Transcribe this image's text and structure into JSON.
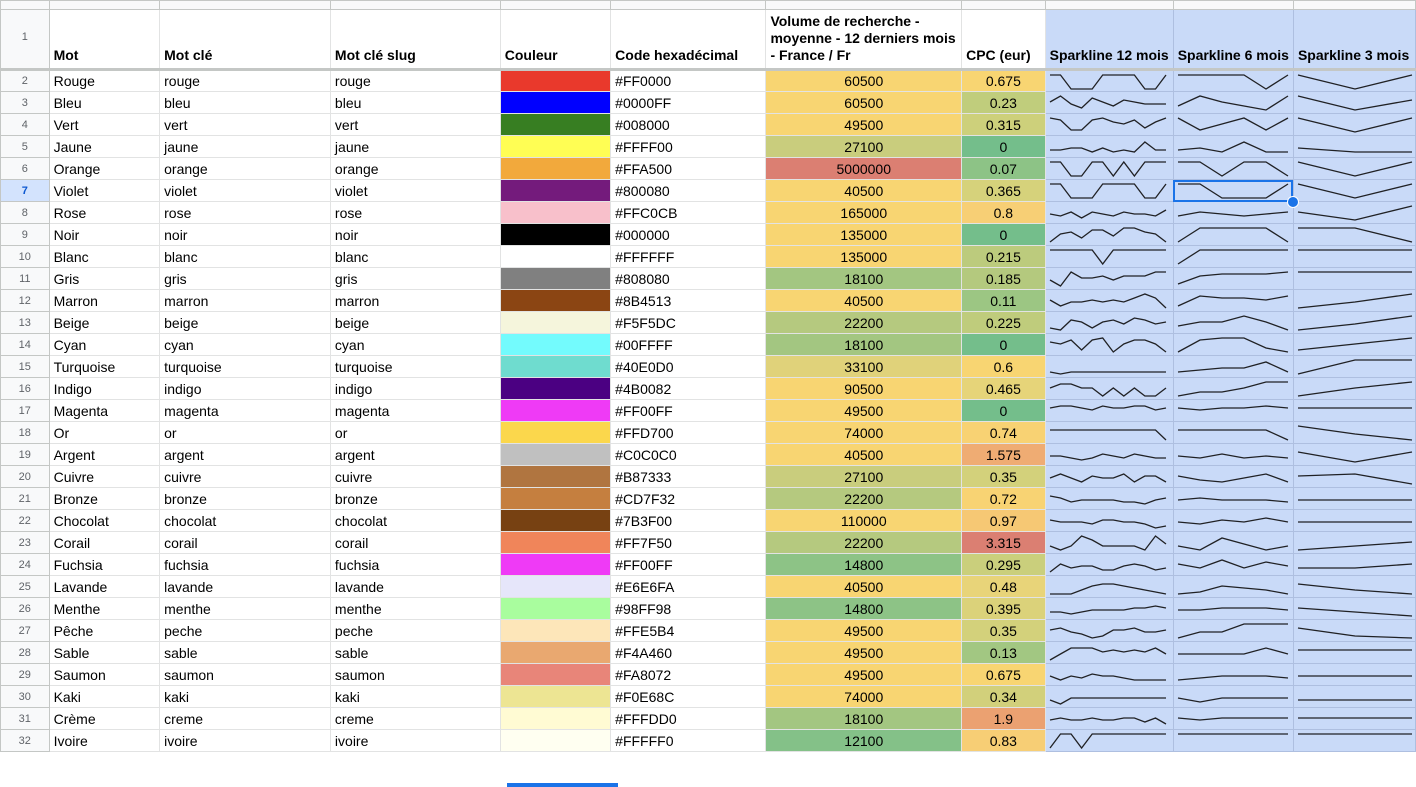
{
  "columns": {
    "mot": "Mot",
    "mot_cle": "Mot clé",
    "slug": "Mot clé slug",
    "couleur": "Couleur",
    "hex": "Code hexadécimal",
    "volume": "Volume de recherche - moyenne - 12 derniers mois - France / Fr",
    "cpc": "CPC (eur)",
    "spark12": "Sparkline 12 mois",
    "spark6": "Sparkline 6 mois",
    "spark3": "Sparkline 3 mois"
  },
  "header_row_number": "1",
  "selected_row": "7",
  "colors": {
    "volume_high": "#f8d572",
    "cpc_good": "#74be8b",
    "spark_bg": "#c9daf8",
    "selection": "#1a73e8"
  },
  "rows": [
    {
      "n": "2",
      "mot": "Rouge",
      "cle": "rouge",
      "slug": "rouge",
      "swatch": "#FF0000",
      "swatch_draw": "#e9392c",
      "hex": "#FF0000",
      "vol": "60500",
      "vol_bg": "#f8d572",
      "cpc": "0.675",
      "cpc_bg": "#f8d572"
    },
    {
      "n": "3",
      "mot": "Bleu",
      "cle": "bleu",
      "slug": "bleu",
      "swatch": "#0000FF",
      "swatch_draw": "#0000ff",
      "hex": "#0000FF",
      "vol": "60500",
      "vol_bg": "#f8d572",
      "cpc": "0.23",
      "cpc_bg": "#c0cd7c"
    },
    {
      "n": "4",
      "mot": "Vert",
      "cle": "vert",
      "slug": "vert",
      "swatch": "#008000",
      "swatch_draw": "#377e22",
      "hex": "#008000",
      "vol": "49500",
      "vol_bg": "#f8d572",
      "cpc": "0.315",
      "cpc_bg": "#cdd07b"
    },
    {
      "n": "5",
      "mot": "Jaune",
      "cle": "jaune",
      "slug": "jaune",
      "swatch": "#FFFF00",
      "swatch_draw": "#fffe54",
      "hex": "#FFFF00",
      "vol": "27100",
      "vol_bg": "#c9cd7d",
      "cpc": "0",
      "cpc_bg": "#74be8b"
    },
    {
      "n": "6",
      "mot": "Orange",
      "cle": "orange",
      "slug": "orange",
      "swatch": "#FFA500",
      "swatch_draw": "#f2a93c",
      "hex": "#FFA500",
      "vol": "5000000",
      "vol_bg": "#db7f72",
      "cpc": "0.07",
      "cpc_bg": "#8dc386"
    },
    {
      "n": "7",
      "mot": "Violet",
      "cle": "violet",
      "slug": "violet",
      "swatch": "#800080",
      "swatch_draw": "#741b7c",
      "hex": "#800080",
      "vol": "40500",
      "vol_bg": "#f8d572",
      "cpc": "0.365",
      "cpc_bg": "#d6d27b"
    },
    {
      "n": "8",
      "mot": "Rose",
      "cle": "rose",
      "slug": "rose",
      "swatch": "#FFC0CB",
      "swatch_draw": "#f8c0cb",
      "hex": "#FFC0CB",
      "vol": "165000",
      "vol_bg": "#f8d572",
      "cpc": "0.8",
      "cpc_bg": "#f7cf75"
    },
    {
      "n": "9",
      "mot": "Noir",
      "cle": "noir",
      "slug": "noir",
      "swatch": "#000000",
      "swatch_draw": "#000000",
      "hex": "#000000",
      "vol": "135000",
      "vol_bg": "#f8d572",
      "cpc": "0",
      "cpc_bg": "#74be8b"
    },
    {
      "n": "10",
      "mot": "Blanc",
      "cle": "blanc",
      "slug": "blanc",
      "swatch": "#FFFFFF",
      "swatch_draw": "#ffffff",
      "hex": "#FFFFFF",
      "vol": "135000",
      "vol_bg": "#f8d572",
      "cpc": "0.215",
      "cpc_bg": "#bccb7d"
    },
    {
      "n": "11",
      "mot": "Gris",
      "cle": "gris",
      "slug": "gris",
      "swatch": "#808080",
      "swatch_draw": "#808080",
      "hex": "#808080",
      "vol": "18100",
      "vol_bg": "#a3c681",
      "cpc": "0.185",
      "cpc_bg": "#b4c97e"
    },
    {
      "n": "12",
      "mot": "Marron",
      "cle": "marron",
      "slug": "marron",
      "swatch": "#8B4513",
      "swatch_draw": "#8b4513",
      "hex": "#8B4513",
      "vol": "40500",
      "vol_bg": "#f8d572",
      "cpc": "0.11",
      "cpc_bg": "#9cc683"
    },
    {
      "n": "13",
      "mot": "Beige",
      "cle": "beige",
      "slug": "beige",
      "swatch": "#F5F5DC",
      "swatch_draw": "#f5f5dc",
      "hex": "#F5F5DC",
      "vol": "22200",
      "vol_bg": "#b5c97f",
      "cpc": "0.225",
      "cpc_bg": "#bfcc7c"
    },
    {
      "n": "14",
      "mot": "Cyan",
      "cle": "cyan",
      "slug": "cyan",
      "swatch": "#00FFFF",
      "swatch_draw": "#73fbfd",
      "hex": "#00FFFF",
      "vol": "18100",
      "vol_bg": "#a3c681",
      "cpc": "0",
      "cpc_bg": "#74be8b"
    },
    {
      "n": "15",
      "mot": "Turquoise",
      "cle": "turquoise",
      "slug": "turquoise",
      "swatch": "#40E0D0",
      "swatch_draw": "#6fdccf",
      "hex": "#40E0D0",
      "vol": "33100",
      "vol_bg": "#e0d27a",
      "cpc": "0.6",
      "cpc_bg": "#f8d572"
    },
    {
      "n": "16",
      "mot": "Indigo",
      "cle": "indigo",
      "slug": "indigo",
      "swatch": "#4B0082",
      "swatch_draw": "#4b0082",
      "hex": "#4B0082",
      "vol": "90500",
      "vol_bg": "#f8d572",
      "cpc": "0.465",
      "cpc_bg": "#e6d479"
    },
    {
      "n": "17",
      "mot": "Magenta",
      "cle": "magenta",
      "slug": "magenta",
      "swatch": "#FF00FF",
      "swatch_draw": "#ef3af6",
      "hex": "#FF00FF",
      "vol": "49500",
      "vol_bg": "#f8d572",
      "cpc": "0",
      "cpc_bg": "#74be8b"
    },
    {
      "n": "18",
      "mot": "Or",
      "cle": "or",
      "slug": "or",
      "swatch": "#FFD700",
      "swatch_draw": "#fbd74c",
      "hex": "#FFD700",
      "vol": "74000",
      "vol_bg": "#f8d572",
      "cpc": "0.74",
      "cpc_bg": "#f8d273"
    },
    {
      "n": "19",
      "mot": "Argent",
      "cle": "argent",
      "slug": "argent",
      "swatch": "#C0C0C0",
      "swatch_draw": "#c0c0c0",
      "hex": "#C0C0C0",
      "vol": "40500",
      "vol_bg": "#f8d572",
      "cpc": "1.575",
      "cpc_bg": "#efac73"
    },
    {
      "n": "20",
      "mot": "Cuivre",
      "cle": "cuivre",
      "slug": "cuivre",
      "swatch": "#B87333",
      "swatch_draw": "#b07540",
      "hex": "#B87333",
      "vol": "27100",
      "vol_bg": "#c9cd7d",
      "cpc": "0.35",
      "cpc_bg": "#d3d17b"
    },
    {
      "n": "21",
      "mot": "Bronze",
      "cle": "bronze",
      "slug": "bronze",
      "swatch": "#CD7F32",
      "swatch_draw": "#c57f3f",
      "hex": "#CD7F32",
      "vol": "22200",
      "vol_bg": "#b5c97f",
      "cpc": "0.72",
      "cpc_bg": "#f8d373"
    },
    {
      "n": "22",
      "mot": "Chocolat",
      "cle": "chocolat",
      "slug": "chocolat",
      "swatch": "#7B3F00",
      "swatch_draw": "#774112",
      "hex": "#7B3F00",
      "vol": "110000",
      "vol_bg": "#f8d572",
      "cpc": "0.97",
      "cpc_bg": "#f6c874"
    },
    {
      "n": "23",
      "mot": "Corail",
      "cle": "corail",
      "slug": "corail",
      "swatch": "#FF7F50",
      "swatch_draw": "#f0855a",
      "hex": "#FF7F50",
      "vol": "22200",
      "vol_bg": "#b5c97f",
      "cpc": "3.315",
      "cpc_bg": "#db7f72"
    },
    {
      "n": "24",
      "mot": "Fuchsia",
      "cle": "fuchsia",
      "slug": "fuchsia",
      "swatch": "#FF00FF",
      "swatch_draw": "#ef3af6",
      "hex": "#FF00FF",
      "vol": "14800",
      "vol_bg": "#8dc386",
      "cpc": "0.295",
      "cpc_bg": "#cacf7c"
    },
    {
      "n": "25",
      "mot": "Lavande",
      "cle": "lavande",
      "slug": "lavande",
      "swatch": "#E6E6FA",
      "swatch_draw": "#e6e6fa",
      "hex": "#E6E6FA",
      "vol": "40500",
      "vol_bg": "#f8d572",
      "cpc": "0.48",
      "cpc_bg": "#e8d479"
    },
    {
      "n": "26",
      "mot": "Menthe",
      "cle": "menthe",
      "slug": "menthe",
      "swatch": "#98FF98",
      "swatch_draw": "#a9fd9e",
      "hex": "#98FF98",
      "vol": "14800",
      "vol_bg": "#8dc386",
      "cpc": "0.395",
      "cpc_bg": "#dbd27a"
    },
    {
      "n": "27",
      "mot": "Pêche",
      "cle": "peche",
      "slug": "peche",
      "swatch": "#FFE5B4",
      "swatch_draw": "#fde6b9",
      "hex": "#FFE5B4",
      "vol": "49500",
      "vol_bg": "#f8d572",
      "cpc": "0.35",
      "cpc_bg": "#d3d17b"
    },
    {
      "n": "28",
      "mot": "Sable",
      "cle": "sable",
      "slug": "sable",
      "swatch": "#F4A460",
      "swatch_draw": "#e9a870",
      "hex": "#F4A460",
      "vol": "49500",
      "vol_bg": "#f8d572",
      "cpc": "0.13",
      "cpc_bg": "#a2c782"
    },
    {
      "n": "29",
      "mot": "Saumon",
      "cle": "saumon",
      "slug": "saumon",
      "swatch": "#FA8072",
      "swatch_draw": "#e88579",
      "hex": "#FA8072",
      "vol": "49500",
      "vol_bg": "#f8d572",
      "cpc": "0.675",
      "cpc_bg": "#f8d572"
    },
    {
      "n": "30",
      "mot": "Kaki",
      "cle": "kaki",
      "slug": "kaki",
      "swatch": "#F0E68C",
      "swatch_draw": "#ede593",
      "hex": "#F0E68C",
      "vol": "74000",
      "vol_bg": "#f8d572",
      "cpc": "0.34",
      "cpc_bg": "#d2d07b"
    },
    {
      "n": "31",
      "mot": "Crème",
      "cle": "creme",
      "slug": "creme",
      "swatch": "#FFFDD0",
      "swatch_draw": "#fffbd3",
      "hex": "#FFFDD0",
      "vol": "18100",
      "vol_bg": "#a3c681",
      "cpc": "1.9",
      "cpc_bg": "#eba171"
    },
    {
      "n": "32",
      "mot": "Ivoire",
      "cle": "ivoire",
      "slug": "ivoire",
      "swatch": "#FFFFF0",
      "swatch_draw": "#fffff1",
      "hex": "#FFFFF0",
      "vol": "12100",
      "vol_bg": "#84c188",
      "cpc": "0.83",
      "cpc_bg": "#f7ce75"
    }
  ],
  "sparklines": [
    {
      "s12": [
        9,
        9,
        2,
        2,
        2,
        9,
        9,
        9,
        9,
        2,
        2,
        9
      ],
      "s6": [
        9,
        9,
        9,
        9,
        2,
        9
      ],
      "s3": [
        9,
        2,
        9
      ]
    },
    {
      "s12": [
        6,
        9,
        5,
        3,
        8,
        6,
        4,
        7,
        6,
        5,
        5,
        5
      ],
      "s6": [
        4,
        9,
        6,
        4,
        2,
        9
      ],
      "s3": [
        9,
        2,
        7
      ]
    },
    {
      "s12": [
        9,
        8,
        3,
        3,
        8,
        9,
        7,
        6,
        8,
        4,
        7,
        9
      ],
      "s6": [
        9,
        3,
        6,
        9,
        3,
        9
      ],
      "s3": [
        9,
        2,
        9
      ]
    },
    {
      "s12": [
        4,
        4,
        5,
        5,
        3,
        5,
        3,
        4,
        3,
        8,
        4,
        4
      ],
      "s6": [
        4,
        5,
        3,
        8,
        3,
        3
      ],
      "s3": [
        5,
        3,
        3
      ]
    },
    {
      "s12": [
        9,
        9,
        2,
        2,
        9,
        9,
        2,
        9,
        2,
        9,
        9,
        9
      ],
      "s6": [
        9,
        9,
        2,
        9,
        9,
        2
      ],
      "s3": [
        9,
        2,
        9
      ]
    },
    {
      "s12": [
        9,
        9,
        2,
        2,
        2,
        9,
        9,
        9,
        9,
        2,
        2,
        9
      ],
      "s6": [
        9,
        9,
        2,
        2,
        2,
        9
      ],
      "s3": [
        9,
        2,
        9
      ]
    },
    {
      "s12": [
        5,
        4,
        6,
        3,
        6,
        5,
        4,
        6,
        5,
        5,
        4,
        7
      ],
      "s6": [
        4,
        6,
        5,
        4,
        5,
        6
      ],
      "s3": [
        6,
        2,
        9
      ]
    },
    {
      "s12": [
        2,
        6,
        7,
        4,
        8,
        8,
        5,
        9,
        9,
        7,
        6,
        2
      ],
      "s6": [
        2,
        9,
        9,
        9,
        9,
        2
      ],
      "s3": [
        9,
        9,
        2
      ]
    },
    {
      "s12": [
        9,
        9,
        9,
        9,
        9,
        2,
        9,
        9,
        9,
        9,
        9,
        9
      ],
      "s6": [
        2,
        9,
        9,
        9,
        9,
        9
      ],
      "s3": [
        9,
        9,
        9
      ]
    },
    {
      "s12": [
        5,
        2,
        9,
        6,
        6,
        7,
        5,
        7,
        7,
        7,
        9,
        9
      ],
      "s6": [
        3,
        7,
        8,
        8,
        8,
        9
      ],
      "s3": [
        9,
        9,
        9
      ]
    },
    {
      "s12": [
        6,
        3,
        5,
        5,
        6,
        5,
        6,
        5,
        7,
        9,
        7,
        2
      ],
      "s6": [
        3,
        8,
        7,
        7,
        6,
        8
      ],
      "s3": [
        2,
        5,
        9
      ]
    },
    {
      "s12": [
        3,
        2,
        7,
        6,
        3,
        6,
        7,
        5,
        8,
        7,
        5,
        6
      ],
      "s6": [
        4,
        6,
        6,
        9,
        6,
        2
      ],
      "s3": [
        2,
        5,
        9
      ]
    },
    {
      "s12": [
        7,
        6,
        8,
        3,
        8,
        9,
        2,
        6,
        8,
        8,
        6,
        2
      ],
      "s6": [
        2,
        8,
        9,
        9,
        4,
        2
      ],
      "s3": [
        3,
        6,
        9
      ]
    },
    {
      "s12": [
        3,
        2,
        3,
        3,
        3,
        3,
        3,
        3,
        3,
        3,
        3,
        3
      ],
      "s6": [
        3,
        4,
        5,
        5,
        8,
        3
      ],
      "s3": [
        2,
        9,
        9
      ]
    },
    {
      "s12": [
        6,
        8,
        8,
        6,
        6,
        2,
        6,
        2,
        6,
        2,
        2,
        6
      ],
      "s6": [
        2,
        4,
        4,
        6,
        9,
        9
      ],
      "s3": [
        2,
        6,
        9
      ]
    },
    {
      "s12": [
        7,
        8,
        8,
        7,
        6,
        8,
        7,
        7,
        8,
        8,
        6,
        7
      ],
      "s6": [
        7,
        6,
        7,
        7,
        8,
        7
      ],
      "s3": [
        7,
        7,
        7
      ]
    },
    {
      "s12": [
        7,
        7,
        7,
        7,
        7,
        7,
        7,
        7,
        7,
        7,
        7,
        2
      ],
      "s6": [
        7,
        7,
        7,
        7,
        7,
        2
      ],
      "s3": [
        9,
        5,
        2
      ]
    },
    {
      "s12": [
        5,
        5,
        4,
        3,
        4,
        6,
        5,
        4,
        6,
        5,
        4,
        4
      ],
      "s6": [
        5,
        4,
        6,
        4,
        5,
        4
      ],
      "s3": [
        7,
        2,
        7
      ]
    },
    {
      "s12": [
        5,
        7,
        5,
        3,
        6,
        5,
        5,
        7,
        3,
        6,
        6,
        3
      ],
      "s6": [
        6,
        4,
        3,
        5,
        7,
        3
      ],
      "s3": [
        6,
        7,
        2
      ]
    },
    {
      "s12": [
        7,
        6,
        4,
        5,
        5,
        5,
        5,
        4,
        4,
        3,
        5,
        6
      ],
      "s6": [
        5,
        6,
        5,
        5,
        5,
        4
      ],
      "s3": [
        5,
        5,
        5
      ]
    },
    {
      "s12": [
        6,
        5,
        5,
        5,
        4,
        6,
        6,
        5,
        5,
        4,
        2,
        3
      ],
      "s6": [
        5,
        4,
        6,
        5,
        7,
        5
      ],
      "s3": [
        5,
        5,
        5
      ]
    },
    {
      "s12": [
        4,
        2,
        4,
        9,
        7,
        4,
        4,
        4,
        4,
        2,
        9,
        5
      ],
      "s6": [
        4,
        2,
        8,
        5,
        2,
        4
      ],
      "s3": [
        2,
        4,
        6
      ]
    },
    {
      "s12": [
        2,
        6,
        4,
        5,
        5,
        3,
        3,
        5,
        6,
        5,
        3,
        4
      ],
      "s6": [
        6,
        4,
        8,
        4,
        7,
        5
      ],
      "s3": [
        4,
        4,
        6
      ]
    },
    {
      "s12": [
        2,
        2,
        2,
        4,
        6,
        7,
        7,
        6,
        5,
        4,
        3,
        2
      ],
      "s6": [
        2,
        3,
        6,
        5,
        4,
        2
      ],
      "s3": [
        7,
        4,
        2
      ]
    },
    {
      "s12": [
        4,
        4,
        3,
        4,
        5,
        5,
        5,
        5,
        6,
        6,
        7,
        6
      ],
      "s6": [
        5,
        5,
        6,
        6,
        6,
        5
      ],
      "s3": [
        6,
        4,
        2
      ]
    },
    {
      "s12": [
        6,
        7,
        5,
        4,
        2,
        3,
        6,
        6,
        7,
        5,
        5,
        6
      ],
      "s6": [
        2,
        5,
        5,
        9,
        9,
        9
      ],
      "s3": [
        7,
        3,
        2
      ]
    },
    {
      "s12": [
        2,
        5,
        8,
        8,
        8,
        6,
        7,
        6,
        7,
        6,
        8,
        5
      ],
      "s6": [
        5,
        5,
        5,
        5,
        8,
        5
      ],
      "s3": [
        7,
        7,
        7
      ]
    },
    {
      "s12": [
        5,
        3,
        5,
        4,
        6,
        5,
        5,
        4,
        3,
        3,
        3,
        3
      ],
      "s6": [
        3,
        4,
        5,
        5,
        5,
        4
      ],
      "s3": [
        5,
        5,
        5
      ]
    },
    {
      "s12": [
        4,
        2,
        5,
        5,
        5,
        5,
        5,
        5,
        5,
        5,
        5,
        5
      ],
      "s6": [
        5,
        3,
        5,
        5,
        5,
        5
      ],
      "s3": [
        4,
        4,
        4
      ]
    },
    {
      "s12": [
        5,
        6,
        5,
        5,
        6,
        5,
        5,
        6,
        6,
        4,
        6,
        3
      ],
      "s6": [
        6,
        5,
        6,
        6,
        6,
        6
      ],
      "s3": [
        6,
        6,
        6
      ]
    },
    {
      "s12": [
        2,
        9,
        9,
        2,
        9,
        9,
        9,
        9,
        9,
        9,
        9,
        9
      ],
      "s6": [
        9,
        9,
        9,
        9,
        9,
        9
      ],
      "s3": [
        9,
        9,
        9
      ]
    }
  ]
}
